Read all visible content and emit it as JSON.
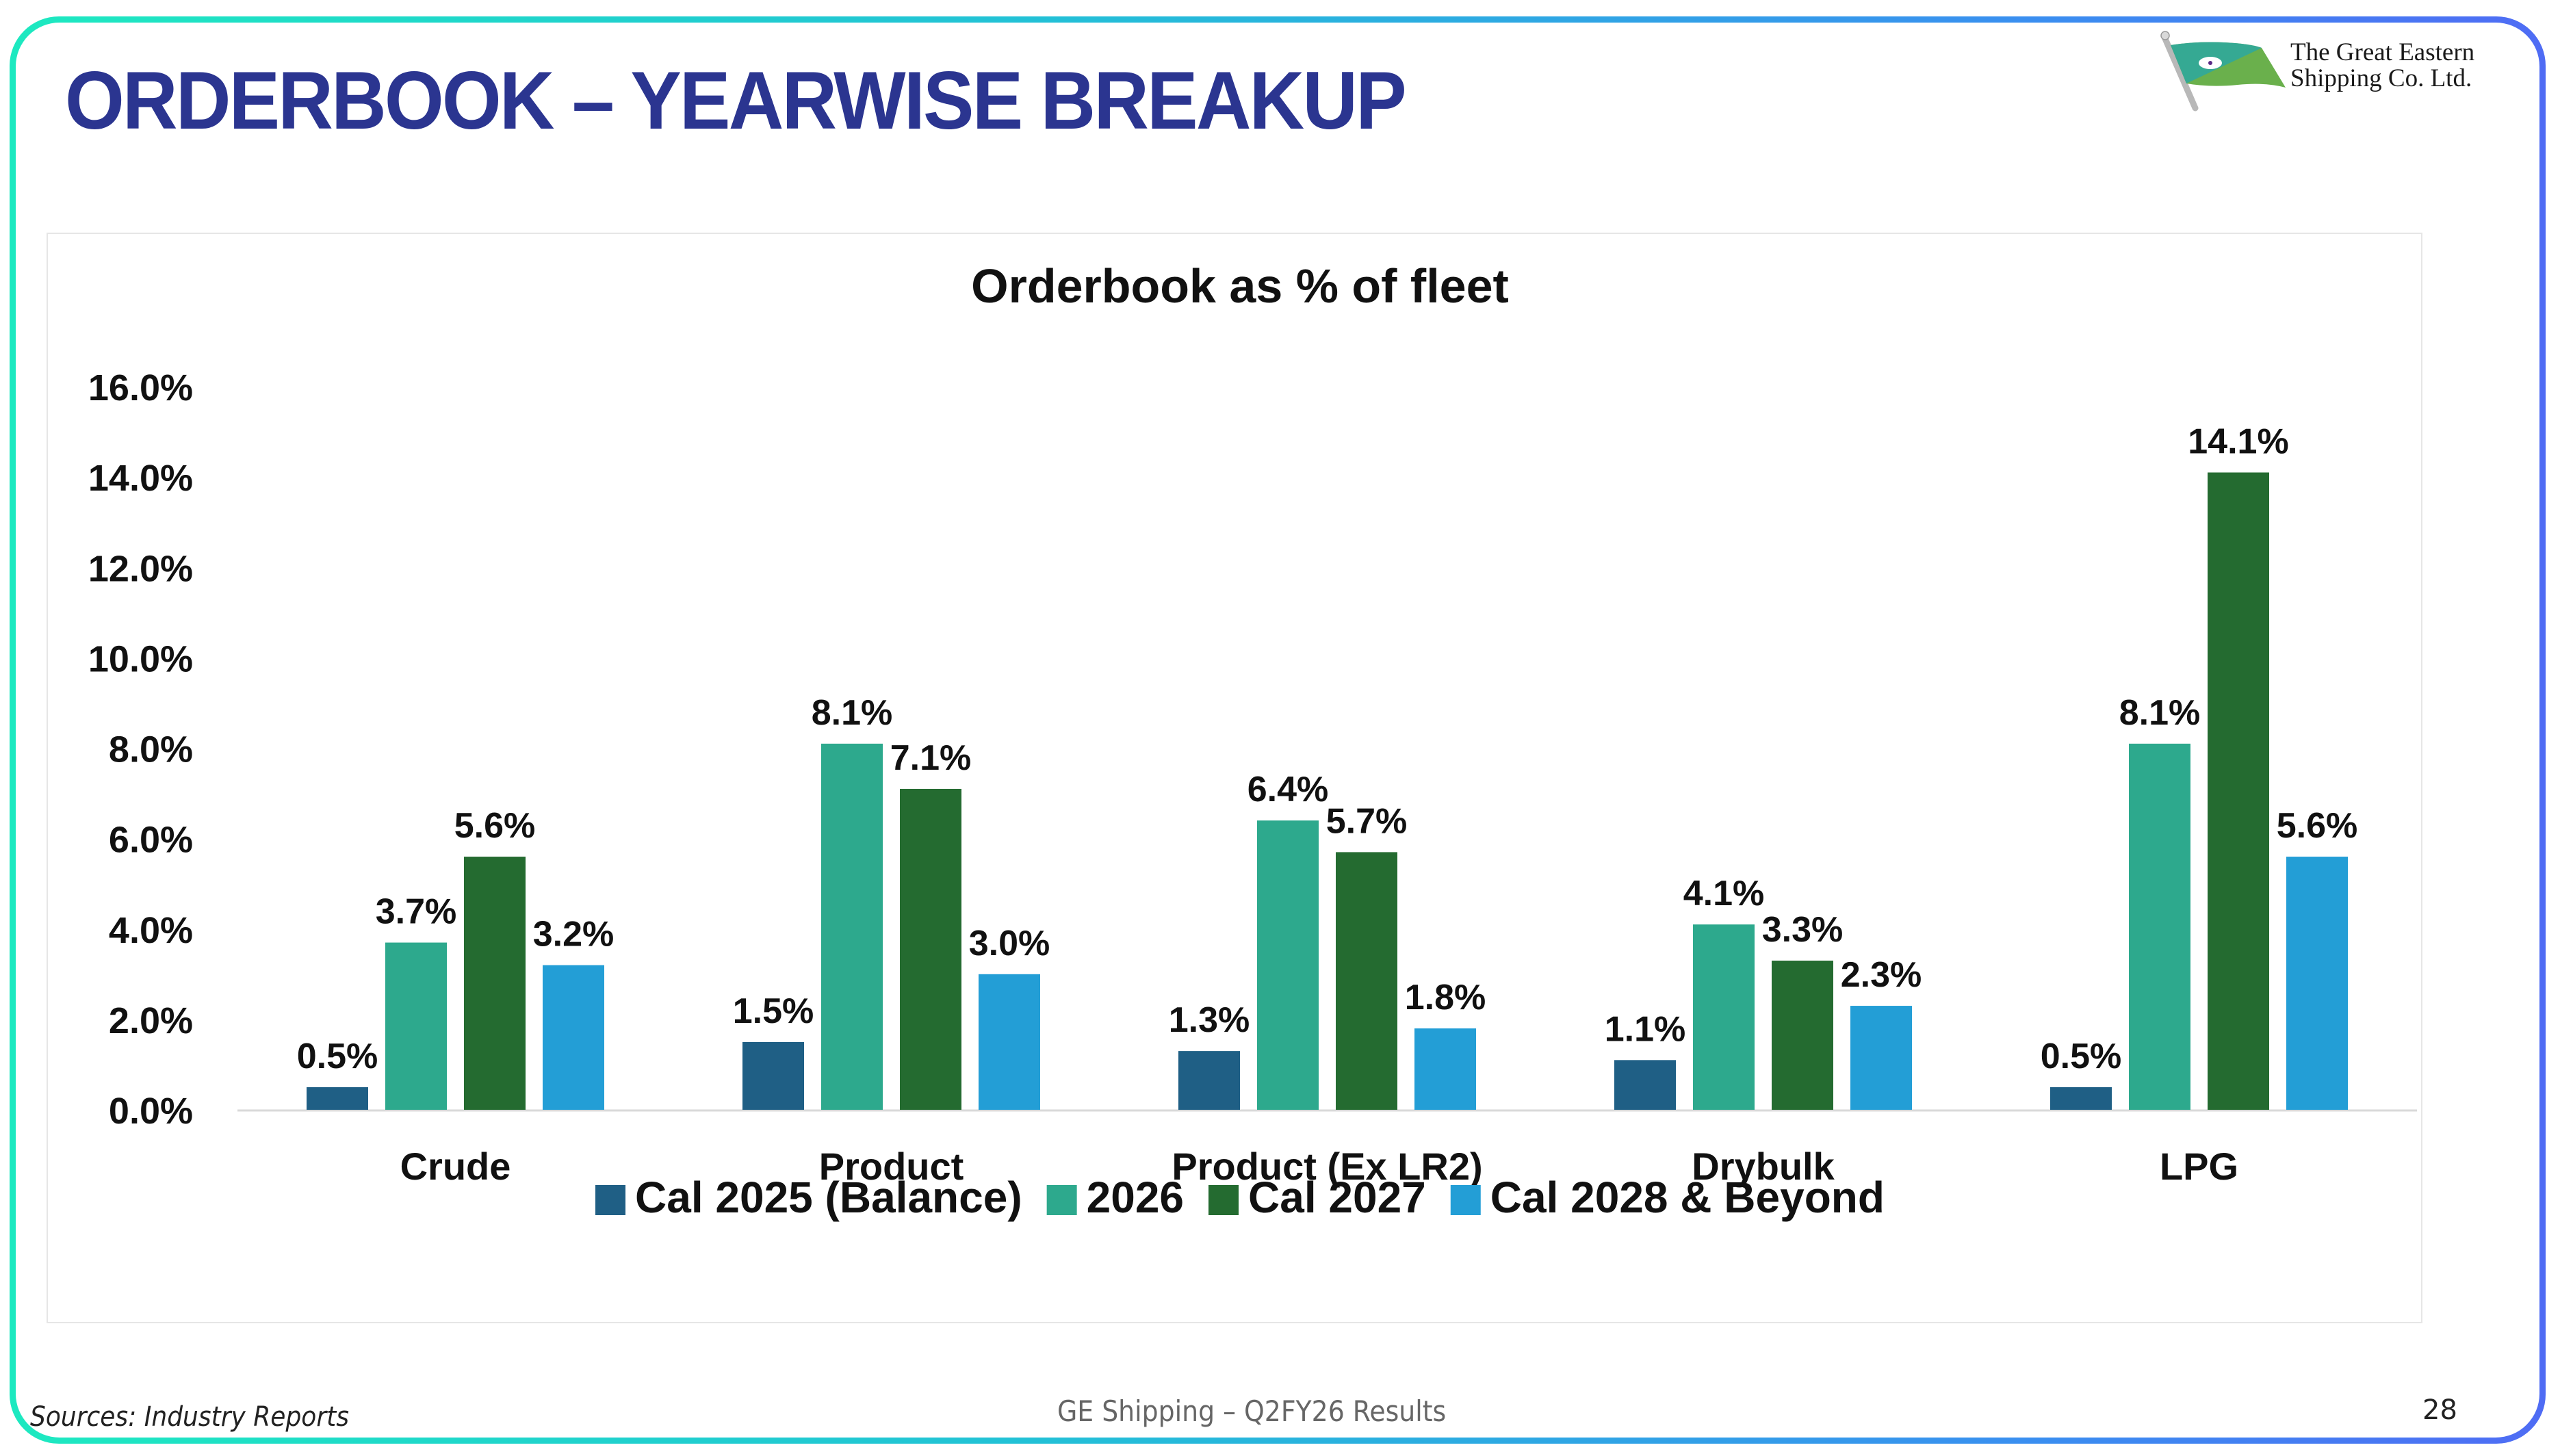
{
  "slide": {
    "title": "ORDERBOOK – YEARWISE BREAKUP",
    "logo_line1": "The Great Eastern",
    "logo_line2": "Shipping Co. Ltd.",
    "footer_source": "Sources: Industry Reports",
    "footer_center": "GE Shipping – Q2FY26 Results",
    "page_number": "28",
    "colors": {
      "title": "#2b3590",
      "frame_start": "#1de9c0",
      "frame_end": "#4f6cf4"
    }
  },
  "chart_data": {
    "type": "bar",
    "title": "Orderbook as % of fleet",
    "xlabel": "",
    "ylabel": "",
    "ylim": [
      0,
      16
    ],
    "yticks": [
      0,
      2,
      4,
      6,
      8,
      10,
      12,
      14,
      16
    ],
    "ytick_labels": [
      "0.0%",
      "2.0%",
      "4.0%",
      "6.0%",
      "8.0%",
      "10.0%",
      "12.0%",
      "14.0%",
      "16.0%"
    ],
    "grid": false,
    "legend_position": "bottom",
    "categories": [
      "Crude",
      "Product",
      "Product (Ex LR2)",
      "Drybulk",
      "LPG"
    ],
    "series": [
      {
        "name": "Cal 2025 (Balance)",
        "color": "#1f5f85",
        "values": [
          0.5,
          1.5,
          1.3,
          1.1,
          0.5
        ],
        "labels": [
          "0.5%",
          "1.5%",
          "1.3%",
          "1.1%",
          "0.5%"
        ]
      },
      {
        "name": "2026",
        "color": "#2da98d",
        "values": [
          3.7,
          8.1,
          6.4,
          4.1,
          8.1
        ],
        "labels": [
          "3.7%",
          "8.1%",
          "6.4%",
          "4.1%",
          "8.1%"
        ]
      },
      {
        "name": "Cal 2027",
        "color": "#246b30",
        "values": [
          5.6,
          7.1,
          5.7,
          3.3,
          14.1
        ],
        "labels": [
          "5.6%",
          "7.1%",
          "5.7%",
          "3.3%",
          "14.1%"
        ]
      },
      {
        "name": "Cal 2028 & Beyond",
        "color": "#239ed6",
        "values": [
          3.2,
          3.0,
          1.8,
          2.3,
          5.6
        ],
        "labels": [
          "3.2%",
          "3.0%",
          "1.8%",
          "2.3%",
          "5.6%"
        ]
      }
    ]
  }
}
